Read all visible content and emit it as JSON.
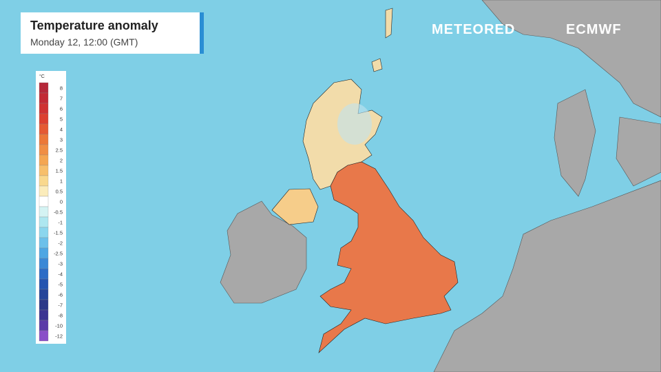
{
  "header": {
    "title": "Temperature anomaly",
    "subtitle": "Monday 12, 12:00 (GMT)"
  },
  "logos": {
    "left": "METEORED",
    "right": "ECMWF"
  },
  "legend": {
    "unit": "°C",
    "ticks": [
      8,
      7,
      6,
      5,
      4,
      3,
      2.5,
      2,
      1.5,
      1,
      0.5,
      0,
      -0.5,
      -1,
      -1.5,
      -2,
      -2.5,
      -3,
      -4,
      -5,
      -6,
      -7,
      -8,
      -10,
      -12
    ],
    "colors": [
      "#b5283a",
      "#c22a35",
      "#cf3232",
      "#dc4030",
      "#e55a33",
      "#ec7838",
      "#f08e44",
      "#f4a651",
      "#f7bf6b",
      "#f9d88d",
      "#fbecbb",
      "#ffffff",
      "#d4f3f3",
      "#aee7f0",
      "#8bd6ee",
      "#6cc0ea",
      "#4ea6e3",
      "#3b88d6",
      "#2d6cc6",
      "#2555b0",
      "#24459a",
      "#2b3988",
      "#3c3492",
      "#5b3ba8",
      "#8a4fc8"
    ]
  }
}
